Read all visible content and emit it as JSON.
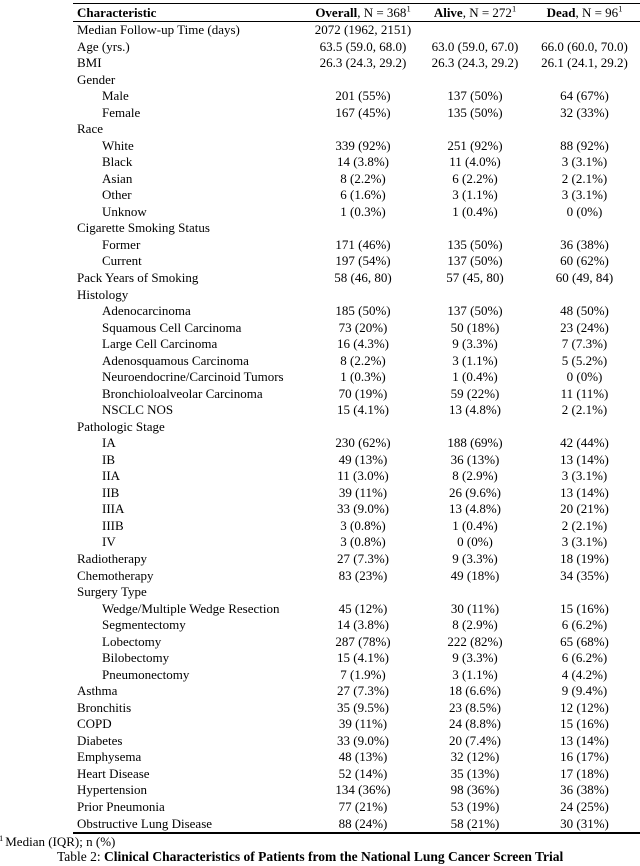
{
  "table": {
    "header": {
      "characteristic": "Characteristic",
      "overall": {
        "name": "Overall",
        "n": ", N = 368",
        "sup": "1"
      },
      "alive": {
        "name": "Alive",
        "n": ", N = 272",
        "sup": "1"
      },
      "dead": {
        "name": "Dead",
        "n": ", N = 96",
        "sup": "1"
      }
    },
    "rows": [
      {
        "label": "Median Follow-up Time (days)",
        "indent": 0,
        "cells": [
          "2072 (1962, 2151)",
          "",
          ""
        ]
      },
      {
        "label": "Age (yrs.)",
        "indent": 0,
        "cells": [
          "63.5 (59.0, 68.0)",
          "63.0 (59.0, 67.0)",
          "66.0 (60.0, 70.0)"
        ]
      },
      {
        "label": "BMI",
        "indent": 0,
        "cells": [
          "26.3 (24.3, 29.2)",
          "26.3 (24.3, 29.2)",
          "26.1 (24.1, 29.2)"
        ]
      },
      {
        "label": "Gender",
        "indent": 0,
        "cells": [
          "",
          "",
          ""
        ]
      },
      {
        "label": "Male",
        "indent": 1,
        "cells": [
          "201 (55%)",
          "137 (50%)",
          "64 (67%)"
        ]
      },
      {
        "label": "Female",
        "indent": 1,
        "cells": [
          "167 (45%)",
          "135 (50%)",
          "32 (33%)"
        ]
      },
      {
        "label": "Race",
        "indent": 0,
        "cells": [
          "",
          "",
          ""
        ]
      },
      {
        "label": "White",
        "indent": 1,
        "cells": [
          "339 (92%)",
          "251 (92%)",
          "88 (92%)"
        ]
      },
      {
        "label": "Black",
        "indent": 1,
        "cells": [
          "14 (3.8%)",
          "11 (4.0%)",
          "3 (3.1%)"
        ]
      },
      {
        "label": "Asian",
        "indent": 1,
        "cells": [
          "8 (2.2%)",
          "6 (2.2%)",
          "2 (2.1%)"
        ]
      },
      {
        "label": "Other",
        "indent": 1,
        "cells": [
          "6 (1.6%)",
          "3 (1.1%)",
          "3 (3.1%)"
        ]
      },
      {
        "label": "Unknow",
        "indent": 1,
        "cells": [
          "1 (0.3%)",
          "1 (0.4%)",
          "0 (0%)"
        ]
      },
      {
        "label": "Cigarette Smoking Status",
        "indent": 0,
        "cells": [
          "",
          "",
          ""
        ]
      },
      {
        "label": "Former",
        "indent": 1,
        "cells": [
          "171 (46%)",
          "135 (50%)",
          "36 (38%)"
        ]
      },
      {
        "label": "Current",
        "indent": 1,
        "cells": [
          "197 (54%)",
          "137 (50%)",
          "60 (62%)"
        ]
      },
      {
        "label": "Pack Years of Smoking",
        "indent": 0,
        "cells": [
          "58 (46, 80)",
          "57 (45, 80)",
          "60 (49, 84)"
        ]
      },
      {
        "label": "Histology",
        "indent": 0,
        "cells": [
          "",
          "",
          ""
        ]
      },
      {
        "label": "Adenocarcinoma",
        "indent": 1,
        "cells": [
          "185 (50%)",
          "137 (50%)",
          "48 (50%)"
        ]
      },
      {
        "label": "Squamous Cell Carcinoma",
        "indent": 1,
        "cells": [
          "73 (20%)",
          "50 (18%)",
          "23 (24%)"
        ]
      },
      {
        "label": "Large Cell Carcinoma",
        "indent": 1,
        "cells": [
          "16 (4.3%)",
          "9 (3.3%)",
          "7 (7.3%)"
        ]
      },
      {
        "label": "Adenosquamous Carcinoma",
        "indent": 1,
        "cells": [
          "8 (2.2%)",
          "3 (1.1%)",
          "5 (5.2%)"
        ]
      },
      {
        "label": "Neuroendocrine/Carcinoid Tumors",
        "indent": 1,
        "cells": [
          "1 (0.3%)",
          "1 (0.4%)",
          "0 (0%)"
        ]
      },
      {
        "label": "Bronchioloalveolar Carcinoma",
        "indent": 1,
        "cells": [
          "70 (19%)",
          "59 (22%)",
          "11 (11%)"
        ]
      },
      {
        "label": "NSCLC NOS",
        "indent": 1,
        "cells": [
          "15 (4.1%)",
          "13 (4.8%)",
          "2 (2.1%)"
        ]
      },
      {
        "label": "Pathologic Stage",
        "indent": 0,
        "cells": [
          "",
          "",
          ""
        ]
      },
      {
        "label": "IA",
        "indent": 1,
        "cells": [
          "230 (62%)",
          "188 (69%)",
          "42 (44%)"
        ]
      },
      {
        "label": "IB",
        "indent": 1,
        "cells": [
          "49 (13%)",
          "36 (13%)",
          "13 (14%)"
        ]
      },
      {
        "label": "IIA",
        "indent": 1,
        "cells": [
          "11 (3.0%)",
          "8 (2.9%)",
          "3 (3.1%)"
        ]
      },
      {
        "label": "IIB",
        "indent": 1,
        "cells": [
          "39 (11%)",
          "26 (9.6%)",
          "13 (14%)"
        ]
      },
      {
        "label": "IIIA",
        "indent": 1,
        "cells": [
          "33 (9.0%)",
          "13 (4.8%)",
          "20 (21%)"
        ]
      },
      {
        "label": "IIIB",
        "indent": 1,
        "cells": [
          "3 (0.8%)",
          "1 (0.4%)",
          "2 (2.1%)"
        ]
      },
      {
        "label": "IV",
        "indent": 1,
        "cells": [
          "3 (0.8%)",
          "0 (0%)",
          "3 (3.1%)"
        ]
      },
      {
        "label": "Radiotherapy",
        "indent": 0,
        "cells": [
          "27 (7.3%)",
          "9 (3.3%)",
          "18 (19%)"
        ]
      },
      {
        "label": "Chemotherapy",
        "indent": 0,
        "cells": [
          "83 (23%)",
          "49 (18%)",
          "34 (35%)"
        ]
      },
      {
        "label": "Surgery Type",
        "indent": 0,
        "cells": [
          "",
          "",
          ""
        ]
      },
      {
        "label": "Wedge/Multiple Wedge Resection",
        "indent": 1,
        "cells": [
          "45 (12%)",
          "30 (11%)",
          "15 (16%)"
        ]
      },
      {
        "label": "Segmentectomy",
        "indent": 1,
        "cells": [
          "14 (3.8%)",
          "8 (2.9%)",
          "6 (6.2%)"
        ]
      },
      {
        "label": "Lobectomy",
        "indent": 1,
        "cells": [
          "287 (78%)",
          "222 (82%)",
          "65 (68%)"
        ]
      },
      {
        "label": "Bilobectomy",
        "indent": 1,
        "cells": [
          "15 (4.1%)",
          "9 (3.3%)",
          "6 (6.2%)"
        ]
      },
      {
        "label": "Pneumonectomy",
        "indent": 1,
        "cells": [
          "7 (1.9%)",
          "3 (1.1%)",
          "4 (4.2%)"
        ]
      },
      {
        "label": "Asthma",
        "indent": 0,
        "cells": [
          "27 (7.3%)",
          "18 (6.6%)",
          "9 (9.4%)"
        ]
      },
      {
        "label": "Bronchitis",
        "indent": 0,
        "cells": [
          "35 (9.5%)",
          "23 (8.5%)",
          "12 (12%)"
        ]
      },
      {
        "label": "COPD",
        "indent": 0,
        "cells": [
          "39 (11%)",
          "24 (8.8%)",
          "15 (16%)"
        ]
      },
      {
        "label": "Diabetes",
        "indent": 0,
        "cells": [
          "33 (9.0%)",
          "20 (7.4%)",
          "13 (14%)"
        ]
      },
      {
        "label": "Emphysema",
        "indent": 0,
        "cells": [
          "48 (13%)",
          "32 (12%)",
          "16 (17%)"
        ]
      },
      {
        "label": "Heart Disease",
        "indent": 0,
        "cells": [
          "52 (14%)",
          "35 (13%)",
          "17 (18%)"
        ]
      },
      {
        "label": "Hypertension",
        "indent": 0,
        "cells": [
          "134 (36%)",
          "98 (36%)",
          "36 (38%)"
        ]
      },
      {
        "label": "Prior Pneumonia",
        "indent": 0,
        "cells": [
          "77 (21%)",
          "53 (19%)",
          "24 (25%)"
        ]
      },
      {
        "label": "Obstructive Lung Disease",
        "indent": 0,
        "cells": [
          "88 (24%)",
          "58 (21%)",
          "30 (31%)"
        ]
      }
    ]
  },
  "footnote": {
    "marker": "1",
    "text": "Median (IQR); n (%)"
  },
  "caption": {
    "prefix": "Table 2: ",
    "title": "Clinical Characteristics of Patients from the National Lung Cancer Screen Trial"
  }
}
